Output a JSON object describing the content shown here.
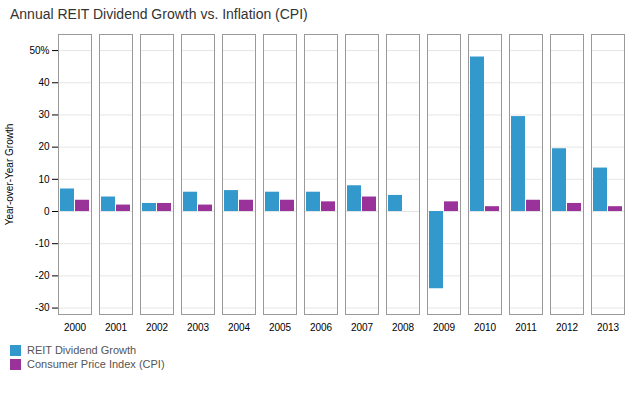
{
  "chart_data": {
    "type": "bar",
    "title": "Annual REIT Dividend Growth vs. Inflation (CPI)",
    "categories": [
      "2000",
      "2001",
      "2002",
      "2003",
      "2004",
      "2005",
      "2006",
      "2007",
      "2008",
      "2009",
      "2010",
      "2011",
      "2012",
      "2013"
    ],
    "series": [
      {
        "name": "REIT Dividend Growth",
        "color": "#3399cc",
        "values": [
          7.0,
          4.5,
          2.5,
          6.0,
          6.5,
          6.0,
          6.0,
          8.0,
          5.0,
          -24.0,
          48.0,
          29.5,
          19.5,
          13.5
        ]
      },
      {
        "name": "Consumer Price Index (CPI)",
        "color": "#993399",
        "values": [
          3.5,
          2.0,
          2.5,
          2.0,
          3.5,
          3.5,
          3.0,
          4.5,
          0.0,
          3.0,
          1.5,
          3.5,
          2.5,
          1.5
        ]
      }
    ],
    "ylabel": "Year-over-Year Growth",
    "ylim": [
      -32,
      55
    ],
    "yticks": [
      -30,
      -20,
      -10,
      0,
      10,
      20,
      30,
      40,
      {
        "value": 50,
        "label": "50%"
      }
    ],
    "grid": true,
    "legend": "lower left"
  }
}
